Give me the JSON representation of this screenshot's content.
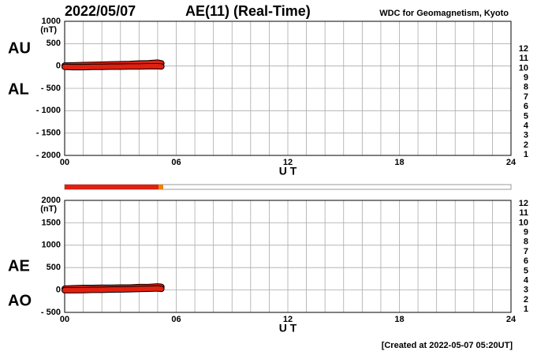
{
  "header": {
    "date": "2022/05/07",
    "title": "AE(11) (Real-Time)",
    "source": "WDC for Geomagnetism, Kyoto"
  },
  "footer": "[Created at 2022-05-07 05:20UT]",
  "station_counts": [
    12,
    11,
    10,
    9,
    8,
    7,
    6,
    5,
    4,
    3,
    2,
    1
  ],
  "station_colors": [
    "#e0106a",
    "#e02010",
    "#f08000",
    "#e8d800",
    "#a0e000",
    "#10c8d0",
    "#1070e0",
    "#2010b0",
    "#b010c0",
    "#303030",
    "#707070",
    "#b0b0b0"
  ],
  "station_coverage": {
    "start": [
      0,
      5.05
    ],
    "end": [
      5.05,
      5.3
    ],
    "count": [
      11,
      10
    ]
  },
  "chart_data": [
    {
      "type": "line",
      "unit": "(nT)",
      "xlabel": "U T",
      "xlim": [
        0,
        24
      ],
      "xticks": [
        {
          "value": 0,
          "label": "00"
        },
        {
          "value": 6,
          "label": "06"
        },
        12,
        18,
        24
      ],
      "x_grid": [
        1,
        2,
        3,
        4,
        5,
        7,
        8,
        9,
        10,
        11,
        13,
        14,
        15,
        16,
        17,
        19,
        20,
        21,
        22,
        23
      ],
      "ylim": [
        -2000,
        1000
      ],
      "yticks": [
        1000,
        500,
        0,
        {
          "value": -500,
          "label": "- 500"
        },
        {
          "value": -1000,
          "label": "- 1000"
        },
        {
          "value": -1500,
          "label": "- 1500"
        },
        {
          "value": -2000,
          "label": "- 2000"
        }
      ],
      "x": [
        0,
        0.5,
        1,
        1.5,
        2,
        2.5,
        3,
        3.5,
        4,
        4.5,
        5,
        5.2
      ],
      "series": [
        {
          "name": "AU",
          "color": "#e02010",
          "values": [
            10,
            15,
            20,
            25,
            30,
            35,
            40,
            45,
            55,
            60,
            75,
            60
          ]
        },
        {
          "name": "AL",
          "color": "#e02010",
          "values": [
            -20,
            -25,
            -25,
            -20,
            -20,
            -15,
            -15,
            -10,
            -10,
            -5,
            -5,
            -10
          ]
        }
      ]
    },
    {
      "type": "line",
      "unit": "(nT)",
      "xlabel": "U T",
      "xlim": [
        0,
        24
      ],
      "xticks": [
        {
          "value": 0,
          "label": "00"
        },
        {
          "value": 6,
          "label": "06"
        },
        12,
        18,
        24
      ],
      "x_grid": [
        1,
        2,
        3,
        4,
        5,
        7,
        8,
        9,
        10,
        11,
        13,
        14,
        15,
        16,
        17,
        19,
        20,
        21,
        22,
        23
      ],
      "ylim": [
        -500,
        2000
      ],
      "yticks": [
        2000,
        1500,
        1000,
        500,
        0,
        {
          "value": -500,
          "label": "- 500"
        }
      ],
      "x": [
        0,
        0.5,
        1,
        1.5,
        2,
        2.5,
        3,
        3.5,
        4,
        4.5,
        5,
        5.2
      ],
      "series": [
        {
          "name": "AE",
          "color": "#e02010",
          "values": [
            30,
            40,
            45,
            45,
            50,
            50,
            55,
            55,
            65,
            65,
            80,
            70
          ]
        },
        {
          "name": "AO",
          "color": "#e02010",
          "values": [
            -5,
            -5,
            -3,
            3,
            5,
            10,
            13,
            18,
            23,
            28,
            35,
            25
          ]
        }
      ]
    }
  ]
}
